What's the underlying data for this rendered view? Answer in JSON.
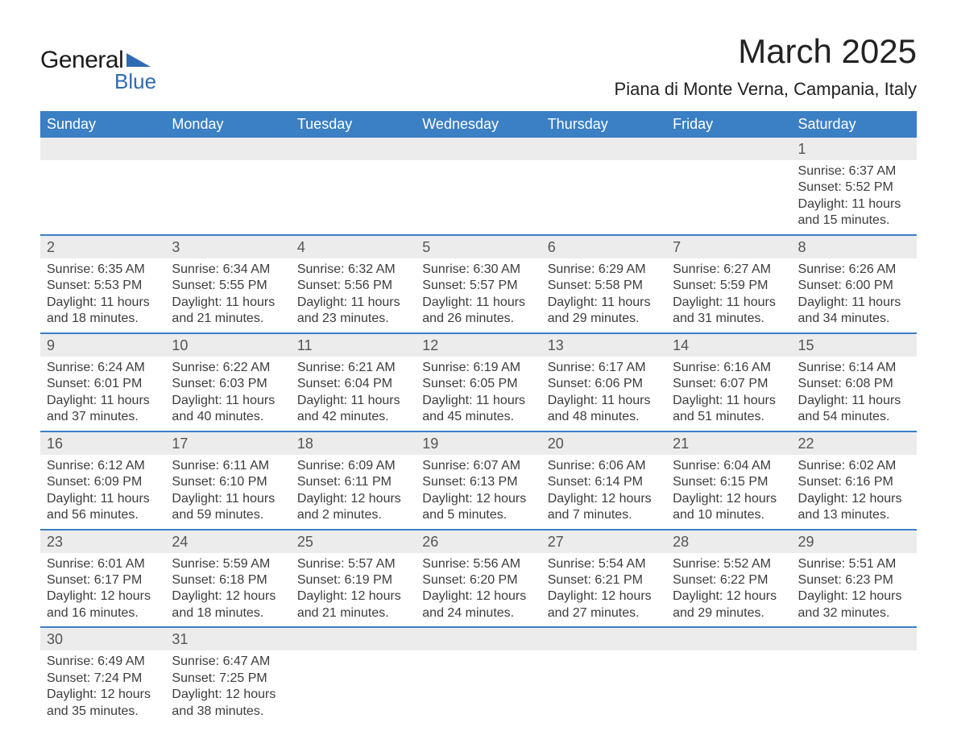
{
  "logo": {
    "line1": "General",
    "line2": "Blue",
    "brand_color": "#2e6bb3"
  },
  "title": "March 2025",
  "location": "Piana di Monte Verna, Campania, Italy",
  "colors": {
    "header_bg": "#3b7fc4",
    "header_text": "#ffffff",
    "daynum_bg": "#ececec",
    "row_border": "#3b7fc4",
    "body_text": "#3c3c3c",
    "background": "#ffffff"
  },
  "font": {
    "family": "Arial",
    "title_size_pt": 42,
    "location_size_pt": 22,
    "header_size_pt": 18,
    "cell_size_pt": 16
  },
  "layout": {
    "columns": 7,
    "start_day_index": 6
  },
  "day_headers": [
    "Sunday",
    "Monday",
    "Tuesday",
    "Wednesday",
    "Thursday",
    "Friday",
    "Saturday"
  ],
  "labels": {
    "sunrise": "Sunrise:",
    "sunset": "Sunset:",
    "daylight": "Daylight:"
  },
  "days": [
    {
      "n": 1,
      "sunrise": "6:37 AM",
      "sunset": "5:52 PM",
      "daylight": "11 hours and 15 minutes."
    },
    {
      "n": 2,
      "sunrise": "6:35 AM",
      "sunset": "5:53 PM",
      "daylight": "11 hours and 18 minutes."
    },
    {
      "n": 3,
      "sunrise": "6:34 AM",
      "sunset": "5:55 PM",
      "daylight": "11 hours and 21 minutes."
    },
    {
      "n": 4,
      "sunrise": "6:32 AM",
      "sunset": "5:56 PM",
      "daylight": "11 hours and 23 minutes."
    },
    {
      "n": 5,
      "sunrise": "6:30 AM",
      "sunset": "5:57 PM",
      "daylight": "11 hours and 26 minutes."
    },
    {
      "n": 6,
      "sunrise": "6:29 AM",
      "sunset": "5:58 PM",
      "daylight": "11 hours and 29 minutes."
    },
    {
      "n": 7,
      "sunrise": "6:27 AM",
      "sunset": "5:59 PM",
      "daylight": "11 hours and 31 minutes."
    },
    {
      "n": 8,
      "sunrise": "6:26 AM",
      "sunset": "6:00 PM",
      "daylight": "11 hours and 34 minutes."
    },
    {
      "n": 9,
      "sunrise": "6:24 AM",
      "sunset": "6:01 PM",
      "daylight": "11 hours and 37 minutes."
    },
    {
      "n": 10,
      "sunrise": "6:22 AM",
      "sunset": "6:03 PM",
      "daylight": "11 hours and 40 minutes."
    },
    {
      "n": 11,
      "sunrise": "6:21 AM",
      "sunset": "6:04 PM",
      "daylight": "11 hours and 42 minutes."
    },
    {
      "n": 12,
      "sunrise": "6:19 AM",
      "sunset": "6:05 PM",
      "daylight": "11 hours and 45 minutes."
    },
    {
      "n": 13,
      "sunrise": "6:17 AM",
      "sunset": "6:06 PM",
      "daylight": "11 hours and 48 minutes."
    },
    {
      "n": 14,
      "sunrise": "6:16 AM",
      "sunset": "6:07 PM",
      "daylight": "11 hours and 51 minutes."
    },
    {
      "n": 15,
      "sunrise": "6:14 AM",
      "sunset": "6:08 PM",
      "daylight": "11 hours and 54 minutes."
    },
    {
      "n": 16,
      "sunrise": "6:12 AM",
      "sunset": "6:09 PM",
      "daylight": "11 hours and 56 minutes."
    },
    {
      "n": 17,
      "sunrise": "6:11 AM",
      "sunset": "6:10 PM",
      "daylight": "11 hours and 59 minutes."
    },
    {
      "n": 18,
      "sunrise": "6:09 AM",
      "sunset": "6:11 PM",
      "daylight": "12 hours and 2 minutes."
    },
    {
      "n": 19,
      "sunrise": "6:07 AM",
      "sunset": "6:13 PM",
      "daylight": "12 hours and 5 minutes."
    },
    {
      "n": 20,
      "sunrise": "6:06 AM",
      "sunset": "6:14 PM",
      "daylight": "12 hours and 7 minutes."
    },
    {
      "n": 21,
      "sunrise": "6:04 AM",
      "sunset": "6:15 PM",
      "daylight": "12 hours and 10 minutes."
    },
    {
      "n": 22,
      "sunrise": "6:02 AM",
      "sunset": "6:16 PM",
      "daylight": "12 hours and 13 minutes."
    },
    {
      "n": 23,
      "sunrise": "6:01 AM",
      "sunset": "6:17 PM",
      "daylight": "12 hours and 16 minutes."
    },
    {
      "n": 24,
      "sunrise": "5:59 AM",
      "sunset": "6:18 PM",
      "daylight": "12 hours and 18 minutes."
    },
    {
      "n": 25,
      "sunrise": "5:57 AM",
      "sunset": "6:19 PM",
      "daylight": "12 hours and 21 minutes."
    },
    {
      "n": 26,
      "sunrise": "5:56 AM",
      "sunset": "6:20 PM",
      "daylight": "12 hours and 24 minutes."
    },
    {
      "n": 27,
      "sunrise": "5:54 AM",
      "sunset": "6:21 PM",
      "daylight": "12 hours and 27 minutes."
    },
    {
      "n": 28,
      "sunrise": "5:52 AM",
      "sunset": "6:22 PM",
      "daylight": "12 hours and 29 minutes."
    },
    {
      "n": 29,
      "sunrise": "5:51 AM",
      "sunset": "6:23 PM",
      "daylight": "12 hours and 32 minutes."
    },
    {
      "n": 30,
      "sunrise": "6:49 AM",
      "sunset": "7:24 PM",
      "daylight": "12 hours and 35 minutes."
    },
    {
      "n": 31,
      "sunrise": "6:47 AM",
      "sunset": "7:25 PM",
      "daylight": "12 hours and 38 minutes."
    }
  ]
}
